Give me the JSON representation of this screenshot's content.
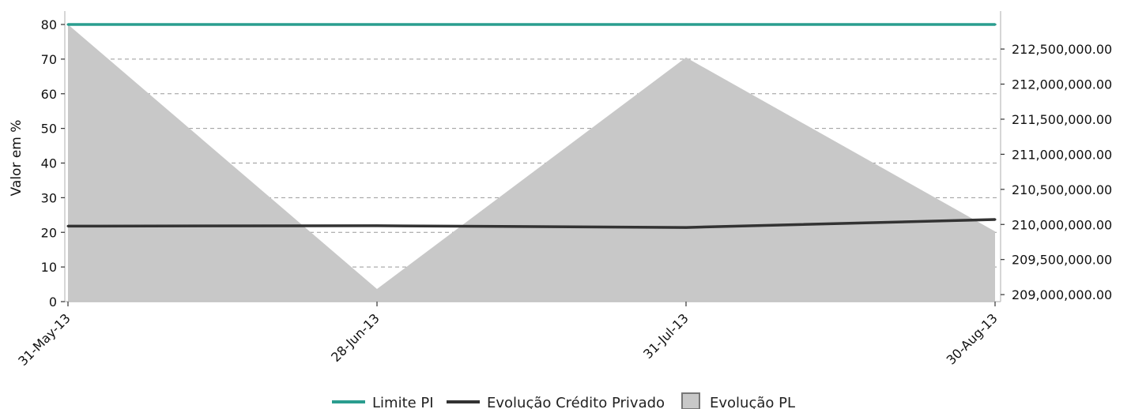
{
  "chart_data": {
    "type": "line",
    "categories": [
      "31-May-13",
      "28-Jun-13",
      "31-Jul-13",
      "30-Aug-13"
    ],
    "left_axis": {
      "label": "Valor em %",
      "ylim": [
        0,
        80
      ],
      "ticks": [
        "0",
        "10",
        "20",
        "30",
        "40",
        "50",
        "60",
        "70",
        "80"
      ]
    },
    "right_axis": {
      "ylim": [
        208900000,
        212850000
      ],
      "ticks": [
        "209,000,000.00",
        "209,500,000.00",
        "210,000,000.00",
        "210,500,000.00",
        "211,000,000.00",
        "211,500,000.00",
        "212,000,000.00",
        "212,500,000.00"
      ]
    },
    "grid": true,
    "legend_position": "bottom",
    "series": [
      {
        "name": "Limite PI",
        "type": "line",
        "axis": "left",
        "color": "#2a9d8f",
        "values": [
          80,
          80,
          80,
          80
        ]
      },
      {
        "name": "Evolução Crédito Privado",
        "type": "line",
        "axis": "left",
        "color": "#333333",
        "values": [
          21.8,
          21.9,
          21.4,
          23.7
        ]
      },
      {
        "name": "Evolução PL",
        "type": "area",
        "axis": "right",
        "color": "#c8c8c8",
        "values": [
          212850000,
          209080000,
          212380000,
          209900000
        ]
      }
    ]
  }
}
